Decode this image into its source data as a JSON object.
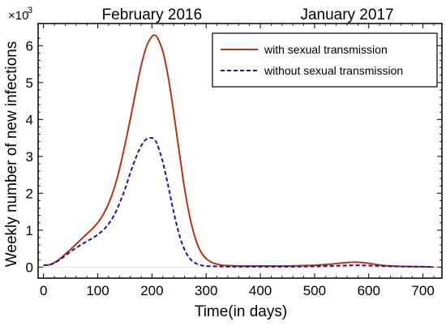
{
  "chart_data": {
    "type": "line",
    "xlabel": "Time(in days)",
    "ylabel": "Weekly number of new infections",
    "y_multiplier": {
      "base": "×10",
      "exponent": "3"
    },
    "xlim": [
      -10,
      735
    ],
    "ylim": [
      -0.3,
      6.6
    ],
    "x_ticks": [
      0,
      100,
      200,
      300,
      400,
      500,
      600,
      700
    ],
    "x_tick_labels": [
      "0",
      "100",
      "200",
      "300",
      "400",
      "500",
      "600",
      "700"
    ],
    "y_ticks": [
      0,
      1,
      2,
      3,
      4,
      5,
      6
    ],
    "y_tick_labels": [
      "0",
      "1",
      "2",
      "3",
      "4",
      "5",
      "6"
    ],
    "top_labels": [
      {
        "text": "February 2016",
        "x": 200
      },
      {
        "text": "January 2017",
        "x": 560
      }
    ],
    "legend_position": "top-right",
    "grid": false,
    "series": [
      {
        "name": "with sexual transmission",
        "color": "#b5341a",
        "style": "solid",
        "x": [
          0,
          10,
          20,
          30,
          40,
          50,
          60,
          70,
          80,
          90,
          100,
          110,
          120,
          130,
          140,
          150,
          160,
          170,
          180,
          190,
          200,
          205,
          210,
          220,
          230,
          240,
          250,
          260,
          270,
          280,
          290,
          300,
          310,
          320,
          330,
          340,
          360,
          380,
          400,
          450,
          500,
          530,
          550,
          570,
          590,
          610,
          630,
          660,
          700,
          720
        ],
        "y": [
          0.05,
          0.06,
          0.12,
          0.22,
          0.35,
          0.48,
          0.62,
          0.76,
          0.9,
          1.04,
          1.2,
          1.42,
          1.72,
          2.12,
          2.65,
          3.3,
          4.0,
          4.75,
          5.45,
          5.98,
          6.25,
          6.28,
          6.22,
          5.85,
          5.15,
          4.2,
          3.15,
          2.15,
          1.35,
          0.78,
          0.42,
          0.23,
          0.13,
          0.08,
          0.05,
          0.04,
          0.03,
          0.03,
          0.03,
          0.03,
          0.05,
          0.08,
          0.11,
          0.13,
          0.12,
          0.08,
          0.04,
          0.02,
          0.01,
          0.0
        ]
      },
      {
        "name": "without sexual transmission",
        "color": "#1a1a96",
        "style": "dashed",
        "x": [
          0,
          10,
          20,
          30,
          40,
          50,
          60,
          70,
          80,
          90,
          100,
          110,
          120,
          130,
          140,
          150,
          160,
          170,
          180,
          190,
          200,
          205,
          210,
          220,
          230,
          240,
          250,
          260,
          270,
          280,
          290,
          300,
          320,
          350,
          400,
          450,
          500,
          550,
          575,
          600,
          650,
          700,
          720
        ],
        "y": [
          0.05,
          0.06,
          0.11,
          0.2,
          0.31,
          0.42,
          0.52,
          0.61,
          0.7,
          0.78,
          0.88,
          1.0,
          1.17,
          1.4,
          1.72,
          2.1,
          2.55,
          2.95,
          3.28,
          3.47,
          3.5,
          3.45,
          3.32,
          2.85,
          2.2,
          1.5,
          0.9,
          0.48,
          0.23,
          0.11,
          0.05,
          0.03,
          0.02,
          0.01,
          0.01,
          0.01,
          0.02,
          0.04,
          0.05,
          0.04,
          0.02,
          0.01,
          0.0
        ]
      }
    ]
  }
}
